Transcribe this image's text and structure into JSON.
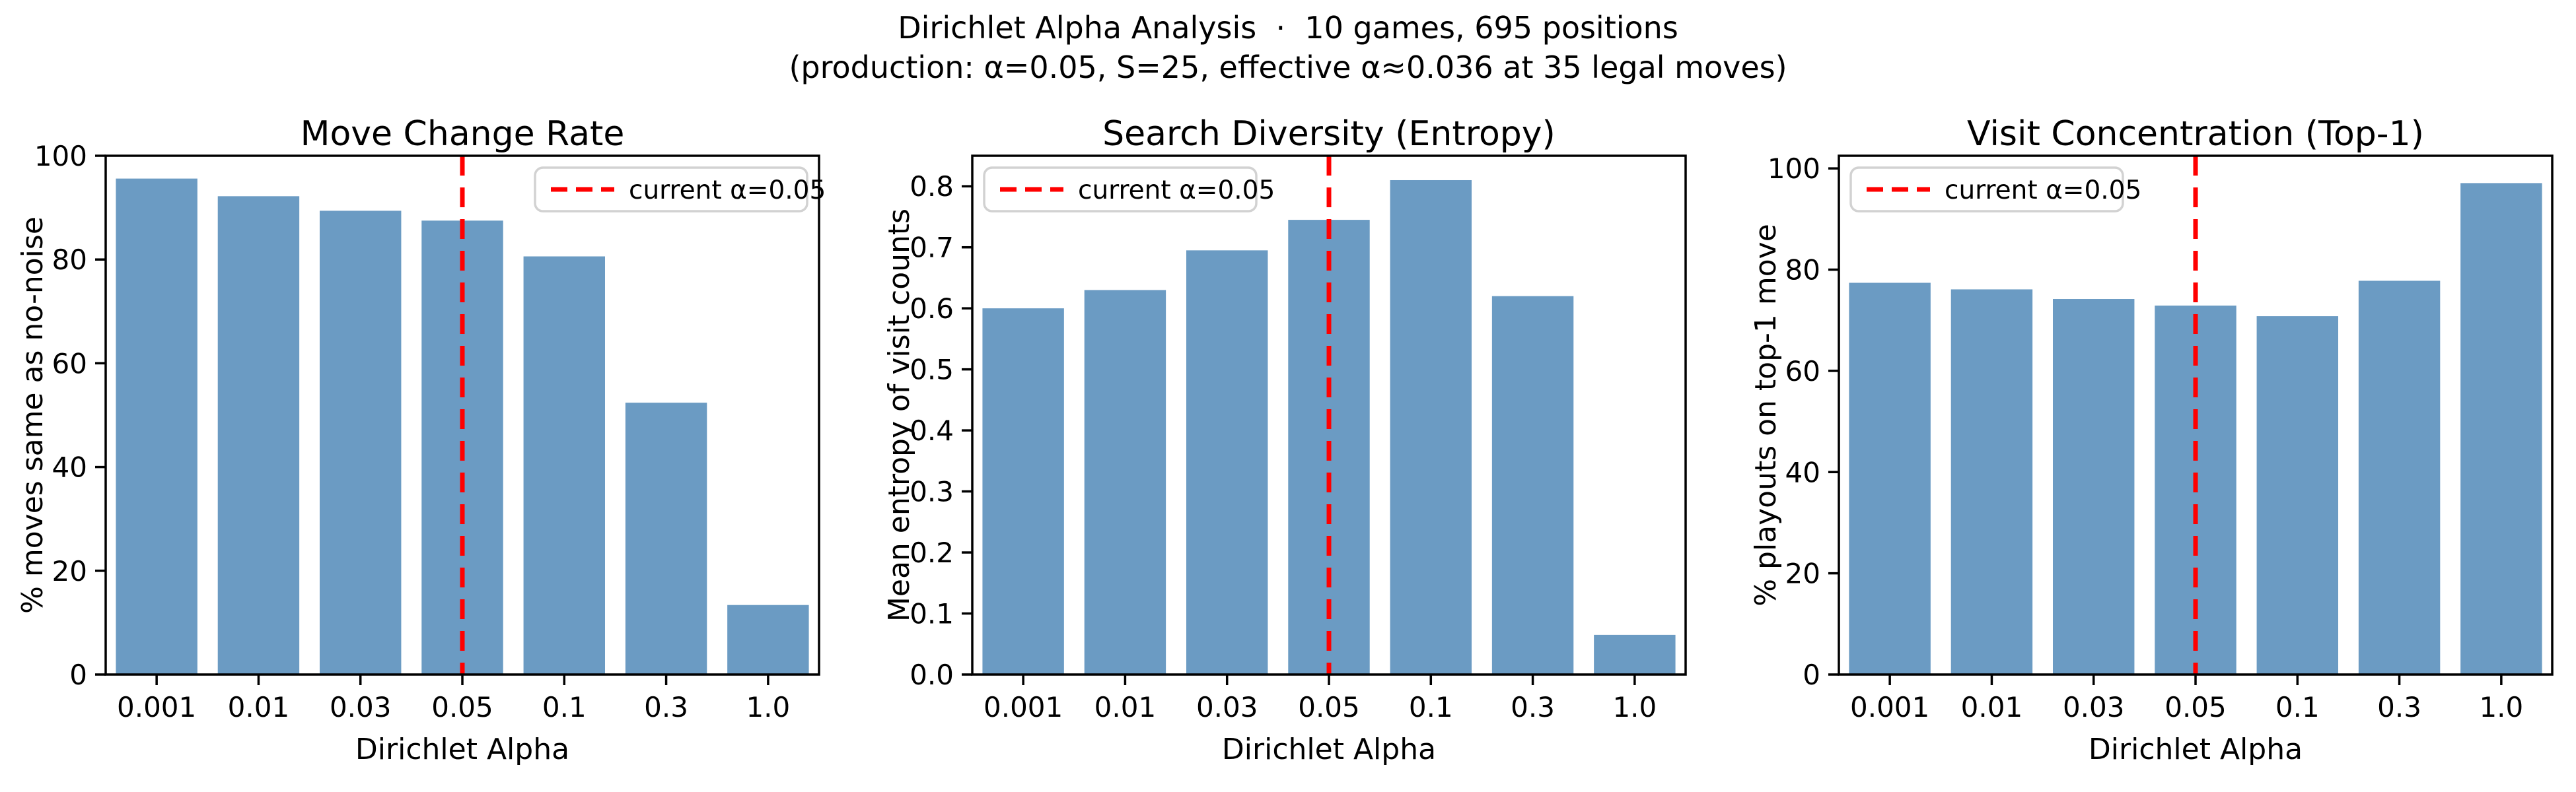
{
  "figure": {
    "suptitle_line1": "Dirichlet Alpha Analysis  ·  10 games, 695 positions",
    "suptitle_line2": "(production: α=0.05, S=25, effective α≈0.036 at 35 legal moves)",
    "colors": {
      "bar": "#6B9BC3",
      "vline": "#FF0000",
      "axis": "#000000",
      "legend_border": "#D2D2D2",
      "legend_fill": "#FFFFFF",
      "background": "#FFFFFF"
    }
  },
  "chart_data": [
    {
      "type": "bar",
      "id": "move-change-rate",
      "title": "Move Change Rate",
      "xlabel": "Dirichlet Alpha",
      "ylabel": "% moves same as no-noise",
      "categories": [
        "0.001",
        "0.01",
        "0.03",
        "0.05",
        "0.1",
        "0.3",
        "1.0"
      ],
      "values": [
        95.6,
        92.2,
        89.4,
        87.5,
        80.6,
        52.4,
        13.4
      ],
      "ylim": [
        0,
        100
      ],
      "yticks": [
        0,
        20,
        40,
        60,
        80,
        100
      ],
      "ytick_labels": [
        "0",
        "20",
        "40",
        "60",
        "80",
        "100"
      ],
      "grid": false,
      "vline": {
        "category": "0.05",
        "label": "current α=0.05"
      },
      "legend_position": "upper-right"
    },
    {
      "type": "bar",
      "id": "search-diversity-entropy",
      "title": "Search Diversity (Entropy)",
      "xlabel": "Dirichlet Alpha",
      "ylabel": "Mean entropy of visit counts",
      "categories": [
        "0.001",
        "0.01",
        "0.03",
        "0.05",
        "0.1",
        "0.3",
        "1.0"
      ],
      "values": [
        0.6,
        0.63,
        0.695,
        0.745,
        0.81,
        0.62,
        0.065
      ],
      "ylim": [
        0,
        0.85
      ],
      "yticks": [
        0,
        0.1,
        0.2,
        0.3,
        0.4,
        0.5,
        0.6,
        0.7,
        0.8
      ],
      "ytick_labels": [
        "0.0",
        "0.1",
        "0.2",
        "0.3",
        "0.4",
        "0.5",
        "0.6",
        "0.7",
        "0.8"
      ],
      "grid": false,
      "vline": {
        "category": "0.05",
        "label": "current α=0.05"
      },
      "legend_position": "upper-left"
    },
    {
      "type": "bar",
      "id": "visit-concentration-top1",
      "title": "Visit Concentration (Top-1)",
      "xlabel": "Dirichlet Alpha",
      "ylabel": "% playouts on top-1 move",
      "categories": [
        "0.001",
        "0.01",
        "0.03",
        "0.05",
        "0.1",
        "0.3",
        "1.0"
      ],
      "values": [
        77.4,
        76.1,
        74.2,
        72.9,
        70.8,
        77.8,
        97.1
      ],
      "ylim": [
        0,
        102.5
      ],
      "yticks": [
        0,
        20,
        40,
        60,
        80,
        100
      ],
      "ytick_labels": [
        "0",
        "20",
        "40",
        "60",
        "80",
        "100"
      ],
      "grid": false,
      "vline": {
        "category": "0.05",
        "label": "current α=0.05"
      },
      "legend_position": "upper-left"
    }
  ]
}
